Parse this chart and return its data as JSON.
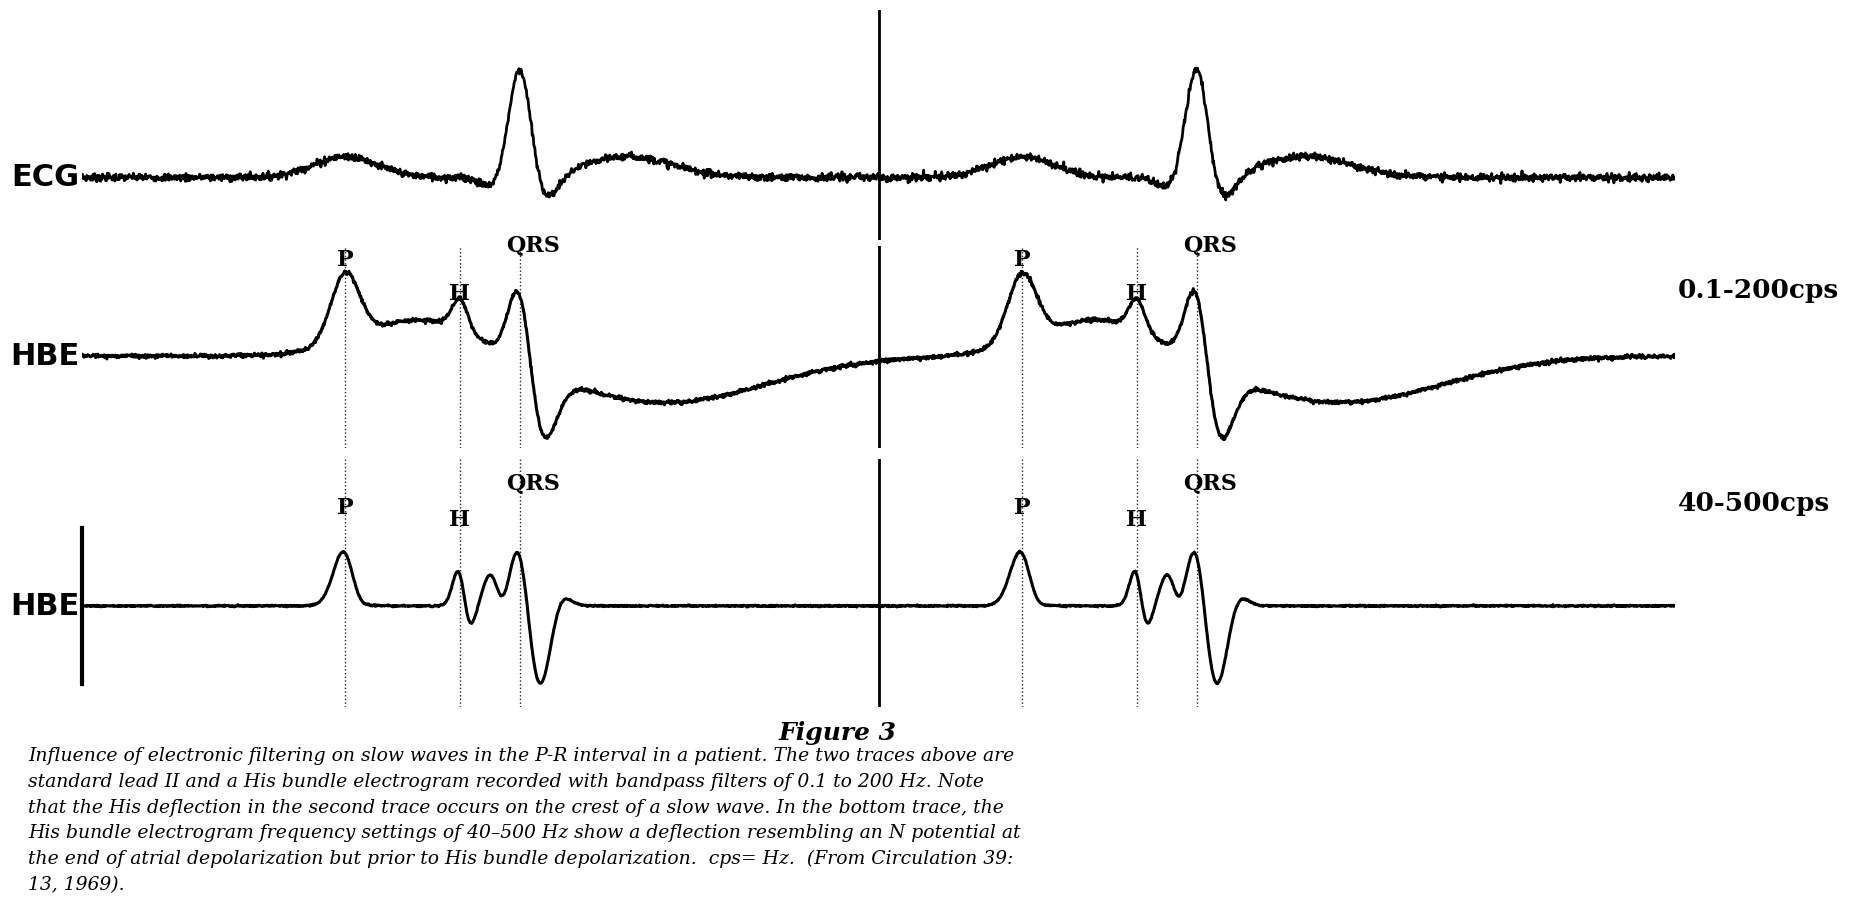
{
  "fig_width": 18.2,
  "fig_height": 11.52,
  "bg_color": "#ffffff",
  "trace_color": "#000000",
  "ecg_label": "ECG",
  "hbe1_label": "HBE",
  "hbe2_label": "HBE",
  "filter1_label": "0.1-200cps",
  "filter2_label": "40-500cps",
  "figure_title": "Figure 3",
  "caption_line1": "Influence of electronic filtering on slow waves in the P-R interval in a patient. The two traces above are",
  "caption_line2": "standard lead II and a His bundle electrogram recorded with bandpass filters of 0.1 to 200 Hz. Note",
  "caption_line3": "that the His deflection in the second trace occurs on the crest of a slow wave. In the bottom trace, the",
  "caption_line4": "His bundle electrogram frequency settings of 40–500 Hz show a deflection resembling an N potential at",
  "caption_line5": "the end of atrial depolarization but prior to His bundle depolarization.  cps= Hz.  (From Circulation 39:",
  "caption_line6": "13, 1969).",
  "beat1": 0.275,
  "beat2": 0.7,
  "noise_ecg": 0.018,
  "noise_hbe": 0.008
}
